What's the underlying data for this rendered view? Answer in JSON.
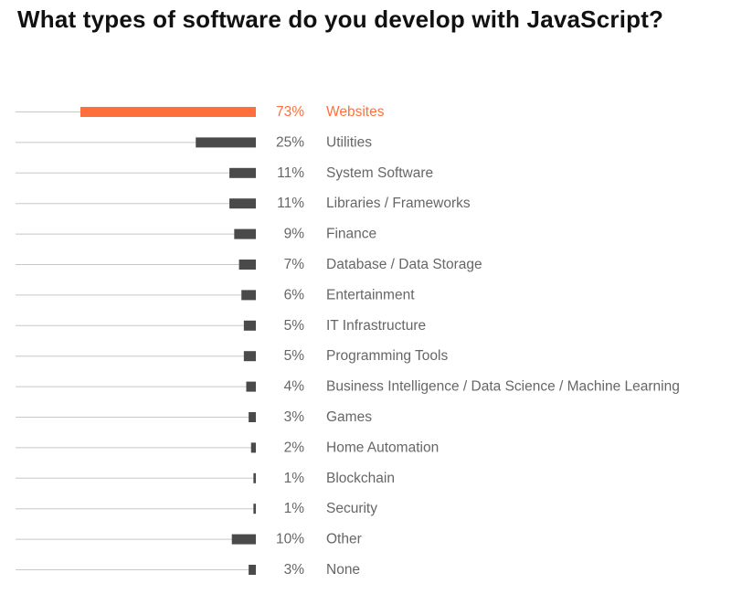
{
  "title": "What types of software do you develop with JavaScript?",
  "colors": {
    "highlight": "#ff6f3c",
    "bar": "#4a4a4a",
    "baseline": "#c8c8c8",
    "label": "#666666"
  },
  "chart_data": {
    "type": "bar",
    "orientation": "horizontal",
    "title": "What types of software do you develop with JavaScript?",
    "unit": "%",
    "highlight_index": 0,
    "xlim": [
      0,
      73
    ],
    "categories": [
      "Websites",
      "Utilities",
      "System Software",
      "Libraries / Frameworks",
      "Finance",
      "Database / Data Storage",
      "Entertainment",
      "IT Infrastructure",
      "Programming Tools",
      "Business Intelligence / Data Science / Machine Learning",
      "Games",
      "Home Automation",
      "Blockchain",
      "Security",
      "Other",
      "None"
    ],
    "values": [
      73,
      25,
      11,
      11,
      9,
      7,
      6,
      5,
      5,
      4,
      3,
      2,
      1,
      1,
      10,
      3
    ],
    "labels": [
      "73%",
      "25%",
      "11%",
      "11%",
      "9%",
      "7%",
      "6%",
      "5%",
      "5%",
      "4%",
      "3%",
      "2%",
      "1%",
      "1%",
      "10%",
      "3%"
    ]
  }
}
